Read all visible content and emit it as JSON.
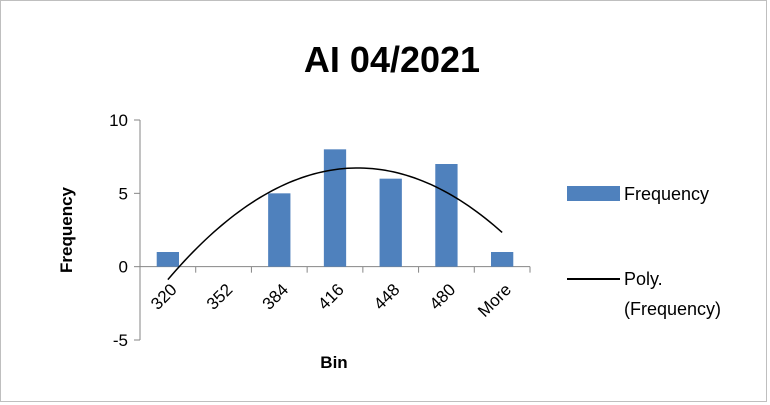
{
  "chart_data": {
    "type": "bar",
    "title": "AI 04/2021",
    "xlabel": "Bin",
    "ylabel": "Frequency",
    "categories": [
      "320",
      "352",
      "384",
      "416",
      "448",
      "480",
      "More"
    ],
    "series": [
      {
        "name": "Frequency",
        "values": [
          1,
          0,
          5,
          8,
          6,
          7,
          1
        ],
        "color": "#4f81bd"
      }
    ],
    "trendline": {
      "name": "Poly. (Frequency)",
      "line1": "Poly.",
      "line2": "(Frequency)",
      "color": "#000000",
      "type": "polynomial",
      "order": 2
    },
    "ylim": [
      -5,
      10
    ],
    "yticks": [
      -5,
      0,
      5,
      10
    ],
    "grid": false,
    "legend_position": "right"
  }
}
